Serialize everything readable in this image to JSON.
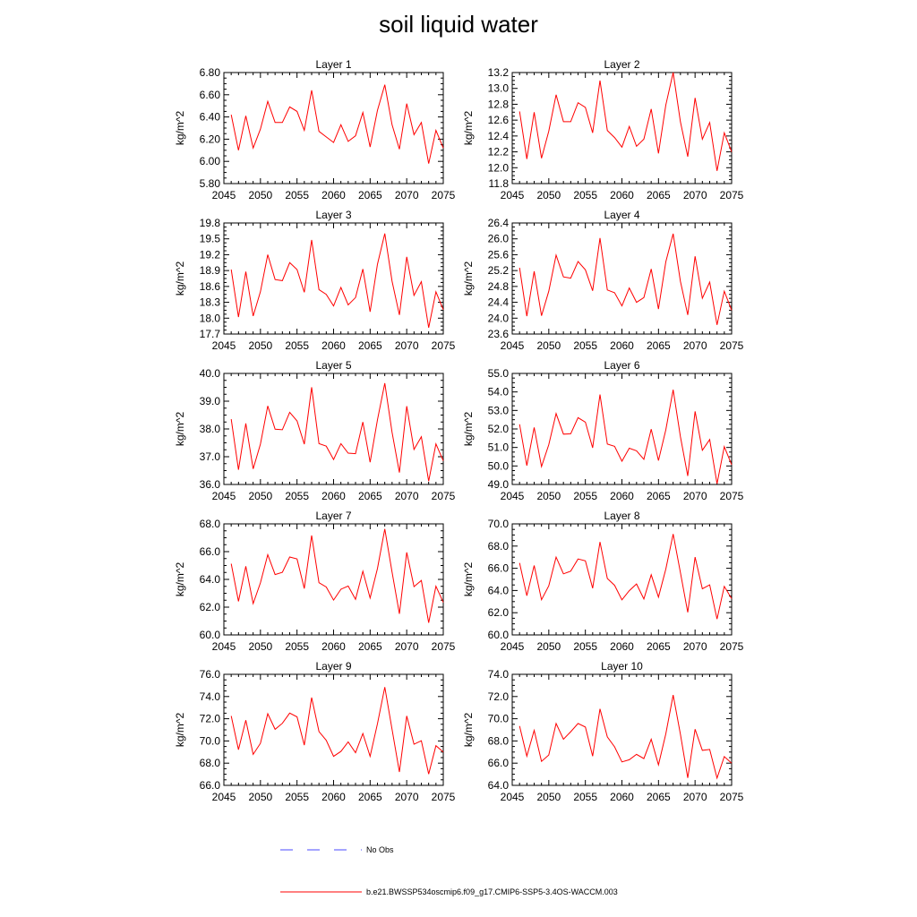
{
  "title": "soil liquid water",
  "legend": {
    "obs_label": "No Obs",
    "model_label": "b.e21.BWSSP534oscmip6.f09_g17.CMIP6-SSP5-3.4OS-WACCM.003",
    "colors": {
      "model": "#ff0000",
      "obs": "#4a4aff"
    }
  },
  "chart_data": [
    {
      "type": "line",
      "title": "Layer 1",
      "ylabel": "kg/m^2",
      "xlim": [
        2045,
        2075
      ],
      "xticks": [
        2045,
        2050,
        2055,
        2060,
        2065,
        2070,
        2075
      ],
      "ylim": [
        5.8,
        6.8
      ],
      "yticks": [
        "5.80",
        "6.00",
        "6.20",
        "6.40",
        "6.60",
        "6.80"
      ],
      "ytick_values": [
        5.8,
        6.0,
        6.2,
        6.4,
        6.6,
        6.8
      ],
      "x": [
        2046,
        2047,
        2048,
        2049,
        2050,
        2051,
        2052,
        2053,
        2054,
        2055,
        2056,
        2057,
        2058,
        2059,
        2060,
        2061,
        2062,
        2063,
        2064,
        2065,
        2066,
        2067,
        2068,
        2069,
        2070,
        2071,
        2072,
        2073,
        2074,
        2075
      ],
      "values": [
        6.42,
        6.1,
        6.41,
        6.12,
        6.29,
        6.54,
        6.35,
        6.35,
        6.49,
        6.45,
        6.28,
        6.64,
        6.27,
        6.22,
        6.17,
        6.33,
        6.18,
        6.23,
        6.44,
        6.13,
        6.46,
        6.69,
        6.33,
        6.11,
        6.52,
        6.24,
        6.35,
        5.98,
        6.28,
        6.12
      ]
    },
    {
      "type": "line",
      "title": "Layer 2",
      "ylabel": "kg/m^2",
      "xlim": [
        2045,
        2075
      ],
      "xticks": [
        2045,
        2050,
        2055,
        2060,
        2065,
        2070,
        2075
      ],
      "ylim": [
        11.8,
        13.2
      ],
      "yticks": [
        "11.8",
        "12.0",
        "12.2",
        "12.4",
        "12.6",
        "12.8",
        "13.0",
        "13.2"
      ],
      "ytick_values": [
        11.8,
        12.0,
        12.2,
        12.4,
        12.6,
        12.8,
        13.0,
        13.2
      ],
      "x": [
        2046,
        2047,
        2048,
        2049,
        2050,
        2051,
        2052,
        2053,
        2054,
        2055,
        2056,
        2057,
        2058,
        2059,
        2060,
        2061,
        2062,
        2063,
        2064,
        2065,
        2066,
        2067,
        2068,
        2069,
        2070,
        2071,
        2072,
        2073,
        2074,
        2075
      ],
      "values": [
        12.71,
        12.11,
        12.7,
        12.12,
        12.46,
        12.92,
        12.58,
        12.58,
        12.82,
        12.76,
        12.44,
        13.1,
        12.47,
        12.38,
        12.26,
        12.52,
        12.27,
        12.36,
        12.74,
        12.18,
        12.79,
        13.2,
        12.58,
        12.14,
        12.88,
        12.36,
        12.57,
        11.96,
        12.44,
        12.2
      ]
    },
    {
      "type": "line",
      "title": "Layer 3",
      "ylabel": "kg/m^2",
      "xlim": [
        2045,
        2075
      ],
      "xticks": [
        2045,
        2050,
        2055,
        2060,
        2065,
        2070,
        2075
      ],
      "ylim": [
        17.7,
        19.8
      ],
      "yticks": [
        "17.7",
        "18.0",
        "18.3",
        "18.6",
        "18.9",
        "19.2",
        "19.5",
        "19.8"
      ],
      "ytick_values": [
        17.7,
        18.0,
        18.3,
        18.6,
        18.9,
        19.2,
        19.5,
        19.8
      ],
      "x": [
        2046,
        2047,
        2048,
        2049,
        2050,
        2051,
        2052,
        2053,
        2054,
        2055,
        2056,
        2057,
        2058,
        2059,
        2060,
        2061,
        2062,
        2063,
        2064,
        2065,
        2066,
        2067,
        2068,
        2069,
        2070,
        2071,
        2072,
        2073,
        2074,
        2075
      ],
      "values": [
        18.92,
        18.02,
        18.88,
        18.04,
        18.5,
        19.2,
        18.73,
        18.71,
        19.05,
        18.92,
        18.49,
        19.48,
        18.54,
        18.45,
        18.23,
        18.58,
        18.25,
        18.39,
        18.93,
        18.12,
        19.02,
        19.6,
        18.7,
        18.06,
        19.16,
        18.43,
        18.69,
        17.82,
        18.5,
        18.16
      ]
    },
    {
      "type": "line",
      "title": "Layer 4",
      "ylabel": "kg/m^2",
      "xlim": [
        2045,
        2075
      ],
      "xticks": [
        2045,
        2050,
        2055,
        2060,
        2065,
        2070,
        2075
      ],
      "ylim": [
        23.6,
        26.4
      ],
      "yticks": [
        "23.6",
        "24.0",
        "24.4",
        "24.8",
        "25.2",
        "25.6",
        "26.0",
        "26.4"
      ],
      "ytick_values": [
        23.6,
        24.0,
        24.4,
        24.8,
        25.2,
        25.6,
        26.0,
        26.4
      ],
      "x": [
        2046,
        2047,
        2048,
        2049,
        2050,
        2051,
        2052,
        2053,
        2054,
        2055,
        2056,
        2057,
        2058,
        2059,
        2060,
        2061,
        2062,
        2063,
        2064,
        2065,
        2066,
        2067,
        2068,
        2069,
        2070,
        2071,
        2072,
        2073,
        2074,
        2075
      ],
      "values": [
        25.27,
        24.05,
        25.18,
        24.06,
        24.68,
        25.59,
        25.04,
        25.01,
        25.43,
        25.22,
        24.69,
        26.02,
        24.71,
        24.64,
        24.31,
        24.76,
        24.4,
        24.52,
        25.24,
        24.23,
        25.42,
        26.13,
        24.93,
        24.08,
        25.56,
        24.5,
        24.91,
        23.83,
        24.68,
        24.2
      ]
    },
    {
      "type": "line",
      "title": "Layer 5",
      "ylabel": "kg/m^2",
      "xlim": [
        2045,
        2075
      ],
      "xticks": [
        2045,
        2050,
        2055,
        2060,
        2065,
        2070,
        2075
      ],
      "ylim": [
        36.0,
        40.0
      ],
      "yticks": [
        "36.0",
        "37.0",
        "38.0",
        "39.0",
        "40.0"
      ],
      "ytick_values": [
        36.0,
        37.0,
        38.0,
        39.0,
        40.0
      ],
      "x": [
        2046,
        2047,
        2048,
        2049,
        2050,
        2051,
        2052,
        2053,
        2054,
        2055,
        2056,
        2057,
        2058,
        2059,
        2060,
        2061,
        2062,
        2063,
        2064,
        2065,
        2066,
        2067,
        2068,
        2069,
        2070,
        2071,
        2072,
        2073,
        2074,
        2075
      ],
      "values": [
        38.35,
        36.53,
        38.2,
        36.56,
        37.45,
        38.83,
        37.99,
        37.97,
        38.6,
        38.29,
        37.45,
        39.5,
        37.47,
        37.38,
        36.9,
        37.47,
        37.13,
        37.11,
        38.25,
        36.8,
        38.33,
        39.65,
        37.88,
        36.43,
        38.82,
        37.26,
        37.72,
        36.12,
        37.46,
        36.85
      ]
    },
    {
      "type": "line",
      "title": "Layer 6",
      "ylabel": "kg/m^2",
      "xlim": [
        2045,
        2075
      ],
      "xticks": [
        2045,
        2050,
        2055,
        2060,
        2065,
        2070,
        2075
      ],
      "ylim": [
        49.0,
        55.0
      ],
      "yticks": [
        "49.0",
        "50.0",
        "51.0",
        "52.0",
        "53.0",
        "54.0",
        "55.0"
      ],
      "ytick_values": [
        49.0,
        50.0,
        51.0,
        52.0,
        53.0,
        54.0,
        55.0
      ],
      "x": [
        2046,
        2047,
        2048,
        2049,
        2050,
        2051,
        2052,
        2053,
        2054,
        2055,
        2056,
        2057,
        2058,
        2059,
        2060,
        2061,
        2062,
        2063,
        2064,
        2065,
        2066,
        2067,
        2068,
        2069,
        2070,
        2071,
        2072,
        2073,
        2074,
        2075
      ],
      "values": [
        52.25,
        50.02,
        52.08,
        49.97,
        51.15,
        52.83,
        51.72,
        51.74,
        52.61,
        52.37,
        50.98,
        53.86,
        51.18,
        51.06,
        50.26,
        50.96,
        50.82,
        50.36,
        51.99,
        50.29,
        51.95,
        54.12,
        51.59,
        49.46,
        52.95,
        50.85,
        51.43,
        49.04,
        51.04,
        50.07
      ]
    },
    {
      "type": "line",
      "title": "Layer 7",
      "ylabel": "kg/m^2",
      "xlim": [
        2045,
        2075
      ],
      "xticks": [
        2045,
        2050,
        2055,
        2060,
        2065,
        2070,
        2075
      ],
      "ylim": [
        60.0,
        68.0
      ],
      "yticks": [
        "60.0",
        "62.0",
        "64.0",
        "66.0",
        "68.0"
      ],
      "ytick_values": [
        60.0,
        62.0,
        64.0,
        66.0,
        68.0
      ],
      "x": [
        2046,
        2047,
        2048,
        2049,
        2050,
        2051,
        2052,
        2053,
        2054,
        2055,
        2056,
        2057,
        2058,
        2059,
        2060,
        2061,
        2062,
        2063,
        2064,
        2065,
        2066,
        2067,
        2068,
        2069,
        2070,
        2071,
        2072,
        2073,
        2074,
        2075
      ],
      "values": [
        65.13,
        62.42,
        64.94,
        62.26,
        63.75,
        65.78,
        64.35,
        64.51,
        65.61,
        65.47,
        63.34,
        67.17,
        63.76,
        63.45,
        62.51,
        63.29,
        63.52,
        62.56,
        64.59,
        62.66,
        64.78,
        67.63,
        64.53,
        61.52,
        65.95,
        63.48,
        63.92,
        60.88,
        63.51,
        62.34
      ]
    },
    {
      "type": "line",
      "title": "Layer 8",
      "ylabel": "kg/m^2",
      "xlim": [
        2045,
        2075
      ],
      "xticks": [
        2045,
        2050,
        2055,
        2060,
        2065,
        2070,
        2075
      ],
      "ylim": [
        60.0,
        70.0
      ],
      "yticks": [
        "60.0",
        "62.0",
        "64.0",
        "66.0",
        "68.0",
        "70.0"
      ],
      "ytick_values": [
        60.0,
        62.0,
        64.0,
        66.0,
        68.0,
        70.0
      ],
      "x": [
        2046,
        2047,
        2048,
        2049,
        2050,
        2051,
        2052,
        2053,
        2054,
        2055,
        2056,
        2057,
        2058,
        2059,
        2060,
        2061,
        2062,
        2063,
        2064,
        2065,
        2066,
        2067,
        2068,
        2069,
        2070,
        2071,
        2072,
        2073,
        2074,
        2075
      ],
      "values": [
        66.48,
        63.53,
        66.25,
        63.17,
        64.42,
        67.01,
        65.5,
        65.74,
        66.84,
        66.67,
        64.2,
        68.37,
        65.08,
        64.47,
        63.16,
        63.98,
        64.59,
        63.23,
        65.42,
        63.4,
        65.93,
        69.09,
        65.62,
        62.03,
        67.01,
        64.15,
        64.51,
        61.43,
        64.37,
        63.27
      ]
    },
    {
      "type": "line",
      "title": "Layer 9",
      "ylabel": "kg/m^2",
      "xlim": [
        2045,
        2075
      ],
      "xticks": [
        2045,
        2050,
        2055,
        2060,
        2065,
        2070,
        2075
      ],
      "ylim": [
        66.0,
        76.0
      ],
      "yticks": [
        "66.0",
        "68.0",
        "70.0",
        "72.0",
        "74.0",
        "76.0"
      ],
      "ytick_values": [
        66.0,
        68.0,
        70.0,
        72.0,
        74.0,
        76.0
      ],
      "x": [
        2046,
        2047,
        2048,
        2049,
        2050,
        2051,
        2052,
        2053,
        2054,
        2055,
        2056,
        2057,
        2058,
        2059,
        2060,
        2061,
        2062,
        2063,
        2064,
        2065,
        2066,
        2067,
        2068,
        2069,
        2070,
        2071,
        2072,
        2073,
        2074,
        2075
      ],
      "values": [
        72.25,
        69.22,
        71.87,
        68.79,
        69.78,
        72.45,
        71.05,
        71.59,
        72.51,
        72.17,
        69.62,
        73.9,
        70.85,
        70.06,
        68.61,
        69.06,
        69.91,
        68.94,
        70.67,
        68.61,
        71.55,
        74.85,
        71.05,
        67.2,
        72.25,
        69.7,
        70.02,
        67.02,
        69.57,
        69.0
      ]
    },
    {
      "type": "line",
      "title": "Layer 10",
      "ylabel": "kg/m^2",
      "xlim": [
        2045,
        2075
      ],
      "xticks": [
        2045,
        2050,
        2055,
        2060,
        2065,
        2070,
        2075
      ],
      "ylim": [
        64.0,
        74.0
      ],
      "yticks": [
        "64.0",
        "66.0",
        "68.0",
        "70.0",
        "72.0",
        "74.0"
      ],
      "ytick_values": [
        64.0,
        66.0,
        68.0,
        70.0,
        72.0,
        74.0
      ],
      "x": [
        2046,
        2047,
        2048,
        2049,
        2050,
        2051,
        2052,
        2053,
        2054,
        2055,
        2056,
        2057,
        2058,
        2059,
        2060,
        2061,
        2062,
        2063,
        2064,
        2065,
        2066,
        2067,
        2068,
        2069,
        2070,
        2071,
        2072,
        2073,
        2074,
        2075
      ],
      "values": [
        69.34,
        66.63,
        68.95,
        66.16,
        66.73,
        69.57,
        68.15,
        68.83,
        69.57,
        69.25,
        66.63,
        70.89,
        68.36,
        67.47,
        66.11,
        66.31,
        66.79,
        66.41,
        68.15,
        65.85,
        68.64,
        72.14,
        68.61,
        64.67,
        69.06,
        67.15,
        67.23,
        64.65,
        66.59,
        66.0
      ]
    }
  ]
}
